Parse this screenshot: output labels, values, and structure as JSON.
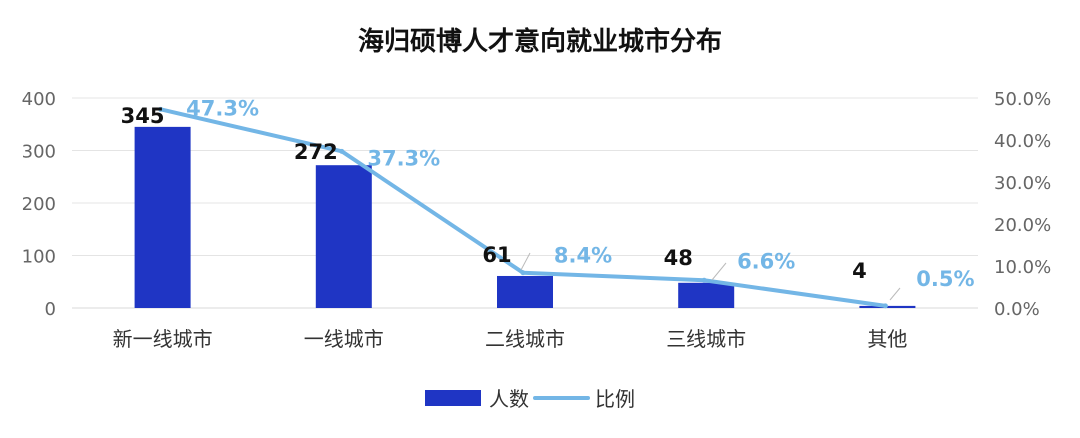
{
  "chart_data": {
    "type": "bar",
    "title": "海归硕博人才意向就业城市分布",
    "categories": [
      "新一线城市",
      "一线城市",
      "二线城市",
      "三线城市",
      "其他"
    ],
    "series": [
      {
        "name": "人数",
        "type": "bar",
        "axis": "left",
        "color": "#1f35c4",
        "values": [
          345,
          272,
          61,
          48,
          4
        ],
        "labels": [
          "345",
          "272",
          "61",
          "48",
          "4"
        ]
      },
      {
        "name": "比例",
        "type": "line",
        "axis": "right",
        "color": "#73b6e6",
        "values": [
          47.3,
          37.3,
          8.4,
          6.6,
          0.5
        ],
        "labels": [
          "47.3%",
          "37.3%",
          "8.4%",
          "6.6%",
          "0.5%"
        ]
      }
    ],
    "y_left": {
      "range": [
        0,
        400
      ],
      "ticks": [
        0,
        100,
        200,
        300,
        400
      ],
      "tick_labels": [
        "0",
        "100",
        "200",
        "300",
        "400"
      ]
    },
    "y_right": {
      "range": [
        0,
        50
      ],
      "ticks": [
        0,
        10,
        20,
        30,
        40,
        50
      ],
      "tick_labels": [
        "0.0%",
        "10.0%",
        "20.0%",
        "30.0%",
        "40.0%",
        "50.0%"
      ]
    },
    "grid": true,
    "legend": {
      "position": "bottom",
      "items": [
        "人数",
        "比例"
      ]
    }
  }
}
